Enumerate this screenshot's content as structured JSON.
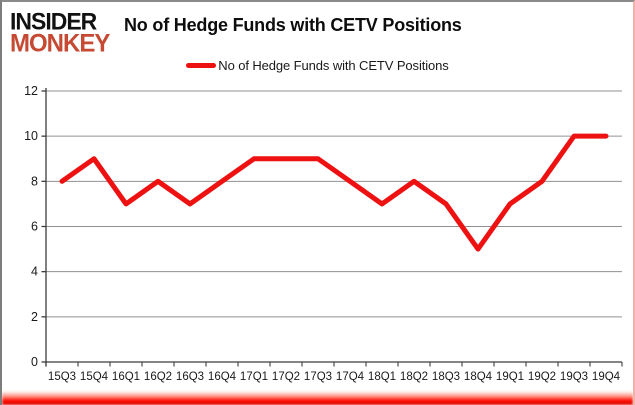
{
  "brand": {
    "line1": "INSIDER",
    "line2": "MONKEY",
    "monkey_color": "#c64a33",
    "insider_color": "#111111"
  },
  "header": {
    "title": "No of Hedge Funds with CETV Positions"
  },
  "legend": {
    "label": "No of Hedge Funds with CETV Positions",
    "swatch_color": "#ee1111"
  },
  "chart_data": {
    "type": "line",
    "title": "No of Hedge Funds with CETV Positions",
    "categories": [
      "15Q3",
      "15Q4",
      "16Q1",
      "16Q2",
      "16Q3",
      "16Q4",
      "17Q1",
      "17Q2",
      "17Q3",
      "17Q4",
      "18Q1",
      "18Q2",
      "18Q3",
      "18Q4",
      "19Q1",
      "19Q2",
      "19Q3",
      "19Q4"
    ],
    "series": [
      {
        "name": "No of Hedge Funds with CETV Positions",
        "color": "#ee1111",
        "values": [
          8,
          9,
          7,
          8,
          7,
          8,
          9,
          9,
          9,
          8,
          7,
          8,
          7,
          5,
          7,
          8,
          10,
          10
        ]
      }
    ],
    "xlabel": "",
    "ylabel": "",
    "ylim": [
      0,
      12
    ],
    "yticks": [
      0,
      2,
      4,
      6,
      8,
      10,
      12
    ],
    "grid": true,
    "legend_position": "top",
    "gridline_color": "#909090",
    "axis_color": "#3c3c3c",
    "tick_label_color": "#1a1a1a",
    "plot_background": "#ffffff"
  }
}
